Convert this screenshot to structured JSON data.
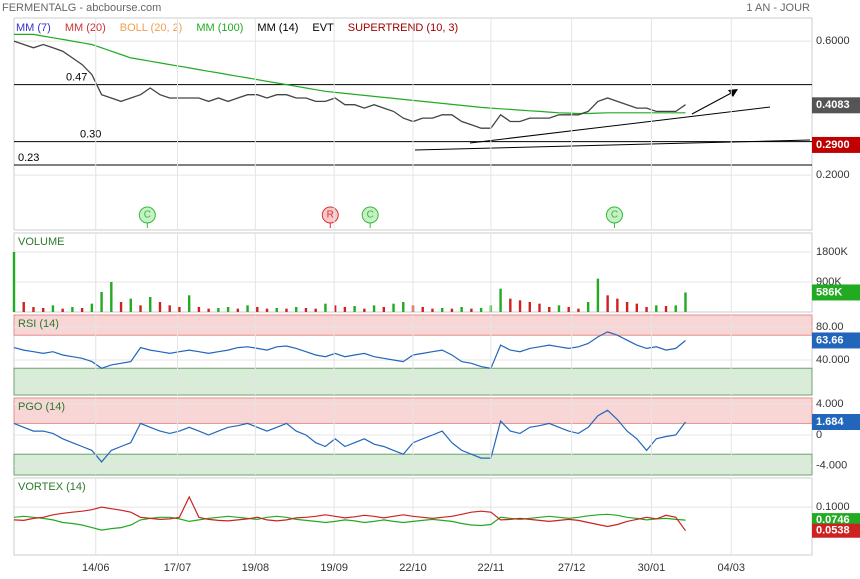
{
  "header": {
    "title": "FERMENTALG - abcbourse.com",
    "timeframe": "1 AN - JOUR"
  },
  "chart_data": [
    {
      "type": "line",
      "color": "#444444",
      "values": [
        0.6,
        0.59,
        0.58,
        0.59,
        0.58,
        0.57,
        0.55,
        0.53,
        0.5,
        0.44,
        0.43,
        0.42,
        0.43,
        0.44,
        0.46,
        0.44,
        0.43,
        0.43,
        0.43,
        0.43,
        0.42,
        0.43,
        0.42,
        0.43,
        0.44,
        0.44,
        0.43,
        0.44,
        0.44,
        0.43,
        0.43,
        0.42,
        0.42,
        0.43,
        0.41,
        0.41,
        0.4,
        0.41,
        0.4,
        0.39,
        0.37,
        0.36,
        0.37,
        0.37,
        0.38,
        0.38,
        0.36,
        0.35,
        0.34,
        0.34,
        0.38,
        0.36,
        0.36,
        0.37,
        0.37,
        0.37,
        0.38,
        0.38,
        0.38,
        0.39,
        0.42,
        0.43,
        0.42,
        0.41,
        0.4,
        0.4,
        0.39,
        0.39,
        0.39,
        0.41
      ],
      "indicators": [
        {
          "name": "MM (7)",
          "color": "#3333cc"
        },
        {
          "name": "MM (20)",
          "color": "#cc3333"
        },
        {
          "name": "BOLL (20, 2)",
          "color": "#f0a050"
        },
        {
          "name": "MM (100)",
          "color": "#22aa22",
          "values": [
            0.62,
            0.62,
            0.62,
            0.615,
            0.61,
            0.605,
            0.6,
            0.595,
            0.59,
            0.58,
            0.57,
            0.56,
            0.55,
            0.545,
            0.54,
            0.535,
            0.53,
            0.525,
            0.52,
            0.515,
            0.51,
            0.505,
            0.5,
            0.495,
            0.49,
            0.485,
            0.48,
            0.475,
            0.47,
            0.465,
            0.46,
            0.455,
            0.45,
            0.447,
            0.444,
            0.441,
            0.438,
            0.435,
            0.432,
            0.429,
            0.426,
            0.423,
            0.42,
            0.417,
            0.414,
            0.411,
            0.408,
            0.405,
            0.402,
            0.4,
            0.398,
            0.396,
            0.394,
            0.392,
            0.39,
            0.388,
            0.386,
            0.385,
            0.384,
            0.384,
            0.385,
            0.386,
            0.386,
            0.386,
            0.386,
            0.386,
            0.386,
            0.386,
            0.386,
            0.386
          ]
        },
        {
          "name": "MM (14)",
          "color": "#000000"
        },
        {
          "name": "EVT",
          "color": "#000000"
        },
        {
          "name": "SUPERTREND (10, 3)",
          "color": "#a00000"
        }
      ],
      "levels": [
        0.47,
        {
          "value": 0.3,
          "label": "0.30"
        },
        0.23
      ],
      "last_price": 0.4083,
      "supertrend": {
        "value": 0.29,
        "label": "0.2900"
      },
      "signals": [
        {
          "label": "C",
          "x": 13.7,
          "color": "#33bb33"
        },
        {
          "label": "R",
          "x": 32.5,
          "color": "#dd3333"
        },
        {
          "label": "C",
          "x": 36.6,
          "color": "#33bb33"
        },
        {
          "label": "C",
          "x": 61.7,
          "color": "#33bb33"
        }
      ],
      "xlim": [
        0,
        82
      ],
      "ylim": [
        0.036,
        0.669
      ],
      "yticks": [
        {
          "value": 0.6,
          "label": "0.6000"
        },
        {
          "value": 0.2,
          "label": "0.2000"
        }
      ]
    },
    {
      "type": "bar",
      "title": "VOLUME",
      "color": "#22aa22",
      "values": [
        1800,
        300,
        150,
        120,
        200,
        100,
        150,
        120,
        250,
        600,
        900,
        300,
        400,
        200,
        450,
        300,
        200,
        150,
        500,
        150,
        100,
        120,
        150,
        100,
        200,
        150,
        100,
        120,
        100,
        150,
        120,
        100,
        250,
        200,
        150,
        180,
        100,
        200,
        150,
        250,
        300,
        200,
        150,
        100,
        120,
        100,
        150,
        100,
        120,
        200,
        700,
        400,
        350,
        300,
        250,
        150,
        200,
        150,
        100,
        300,
        1000,
        500,
        400,
        300,
        250,
        150,
        200,
        180,
        200,
        586
      ],
      "last": {
        "value": 586,
        "label": "586K"
      },
      "xlim": [
        0,
        82
      ],
      "ylim": [
        0,
        2370
      ],
      "yticks": [
        {
          "value": 1800,
          "label": "1800K"
        },
        {
          "value": 900,
          "label": "900K"
        }
      ]
    },
    {
      "type": "line",
      "title": "RSI (14)",
      "color": "#2266bb",
      "values": [
        55,
        52,
        50,
        48,
        50,
        46,
        44,
        42,
        38,
        30,
        34,
        36,
        38,
        55,
        52,
        50,
        48,
        50,
        52,
        50,
        48,
        50,
        52,
        55,
        56,
        54,
        52,
        56,
        57,
        54,
        50,
        46,
        44,
        48,
        44,
        46,
        48,
        44,
        42,
        40,
        38,
        46,
        48,
        50,
        52,
        46,
        38,
        36,
        32,
        30,
        58,
        52,
        50,
        54,
        56,
        58,
        56,
        54,
        56,
        60,
        68,
        74,
        70,
        64,
        58,
        54,
        56,
        52,
        54,
        63.66
      ],
      "zones": [
        70,
        30
      ],
      "last": 63.66,
      "xlim": [
        0,
        82
      ],
      "ylim": [
        -2.4,
        94.5
      ],
      "yticks": [
        {
          "value": 80,
          "label": "80.00"
        },
        {
          "value": 40,
          "label": "40.000"
        }
      ]
    },
    {
      "type": "line",
      "title": "PGO (14)",
      "color": "#2266bb",
      "values": [
        1.5,
        1,
        0.5,
        0.5,
        0.2,
        -0.5,
        -1,
        -1.5,
        -2,
        -3.5,
        -2,
        -1.5,
        -1,
        1.5,
        1,
        0.5,
        0.2,
        0.5,
        1,
        0.5,
        0,
        0.5,
        1,
        1.2,
        1.5,
        1,
        0.5,
        1,
        1.5,
        0.5,
        0,
        -1,
        -1.5,
        -0.5,
        -1.5,
        -1,
        -0.5,
        -1.2,
        -1.5,
        -2,
        -2.5,
        -1,
        -0.5,
        0,
        0.5,
        -1,
        -2,
        -2.5,
        -3,
        -3,
        1.8,
        0.5,
        0.2,
        1,
        1.2,
        1.5,
        1,
        0.5,
        0.2,
        1,
        2.5,
        3.2,
        2,
        0.5,
        -0.5,
        -2,
        -0.5,
        -0.2,
        0,
        1.684
      ],
      "zones": [
        1.5,
        -2.5
      ],
      "last": 1.684,
      "xlim": [
        0,
        82
      ],
      "ylim": [
        -5.2,
        4.8
      ],
      "yticks": [
        {
          "value": 4,
          "label": "4.000"
        },
        0,
        {
          "value": -4,
          "label": "-4.000"
        }
      ]
    },
    {
      "type": "line",
      "title": "VORTEX (14)",
      "series": [
        {
          "color": "#22aa22",
          "values": [
            0.08,
            0.082,
            0.08,
            0.078,
            0.075,
            0.07,
            0.068,
            0.065,
            0.06,
            0.055,
            0.058,
            0.06,
            0.065,
            0.075,
            0.078,
            0.08,
            0.08,
            0.077,
            0.072,
            0.075,
            0.078,
            0.08,
            0.082,
            0.08,
            0.078,
            0.076,
            0.08,
            0.082,
            0.08,
            0.076,
            0.074,
            0.072,
            0.07,
            0.072,
            0.075,
            0.073,
            0.07,
            0.072,
            0.075,
            0.072,
            0.07,
            0.072,
            0.074,
            0.076,
            0.074,
            0.072,
            0.068,
            0.065,
            0.064,
            0.066,
            0.08,
            0.078,
            0.076,
            0.078,
            0.08,
            0.082,
            0.08,
            0.078,
            0.08,
            0.083,
            0.085,
            0.086,
            0.084,
            0.08,
            0.078,
            0.075,
            0.077,
            0.078,
            0.076,
            0.0746
          ]
        },
        {
          "color": "#cc2222",
          "values": [
            0.075,
            0.074,
            0.078,
            0.08,
            0.085,
            0.088,
            0.09,
            0.092,
            0.095,
            0.1,
            0.097,
            0.094,
            0.09,
            0.08,
            0.078,
            0.076,
            0.077,
            0.08,
            0.12,
            0.08,
            0.076,
            0.074,
            0.073,
            0.075,
            0.077,
            0.08,
            0.075,
            0.073,
            0.075,
            0.079,
            0.08,
            0.082,
            0.085,
            0.082,
            0.079,
            0.081,
            0.084,
            0.082,
            0.079,
            0.082,
            0.085,
            0.082,
            0.08,
            0.078,
            0.08,
            0.082,
            0.086,
            0.09,
            0.092,
            0.09,
            0.075,
            0.076,
            0.078,
            0.076,
            0.074,
            0.072,
            0.074,
            0.076,
            0.074,
            0.07,
            0.066,
            0.062,
            0.066,
            0.072,
            0.076,
            0.08,
            0.077,
            0.084,
            0.08,
            0.0538
          ]
        }
      ],
      "xlim": [
        0,
        82
      ],
      "ylim": [
        0.0063,
        0.157
      ],
      "yticks": [
        {
          "value": 0.1,
          "label": "0.1000"
        }
      ],
      "xticks": [
        {
          "value": 8.4,
          "label": "14/06"
        },
        {
          "value": 16.8,
          "label": "17/07"
        },
        {
          "value": 24.8,
          "label": "19/08"
        },
        {
          "value": 32.9,
          "label": "19/09"
        },
        {
          "value": 41,
          "label": "22/10"
        },
        {
          "value": 49,
          "label": "22/11"
        },
        {
          "value": 57.3,
          "label": "27/12"
        },
        {
          "value": 65.5,
          "label": "30/01"
        },
        {
          "value": 73.7,
          "label": "04/03"
        }
      ]
    }
  ]
}
